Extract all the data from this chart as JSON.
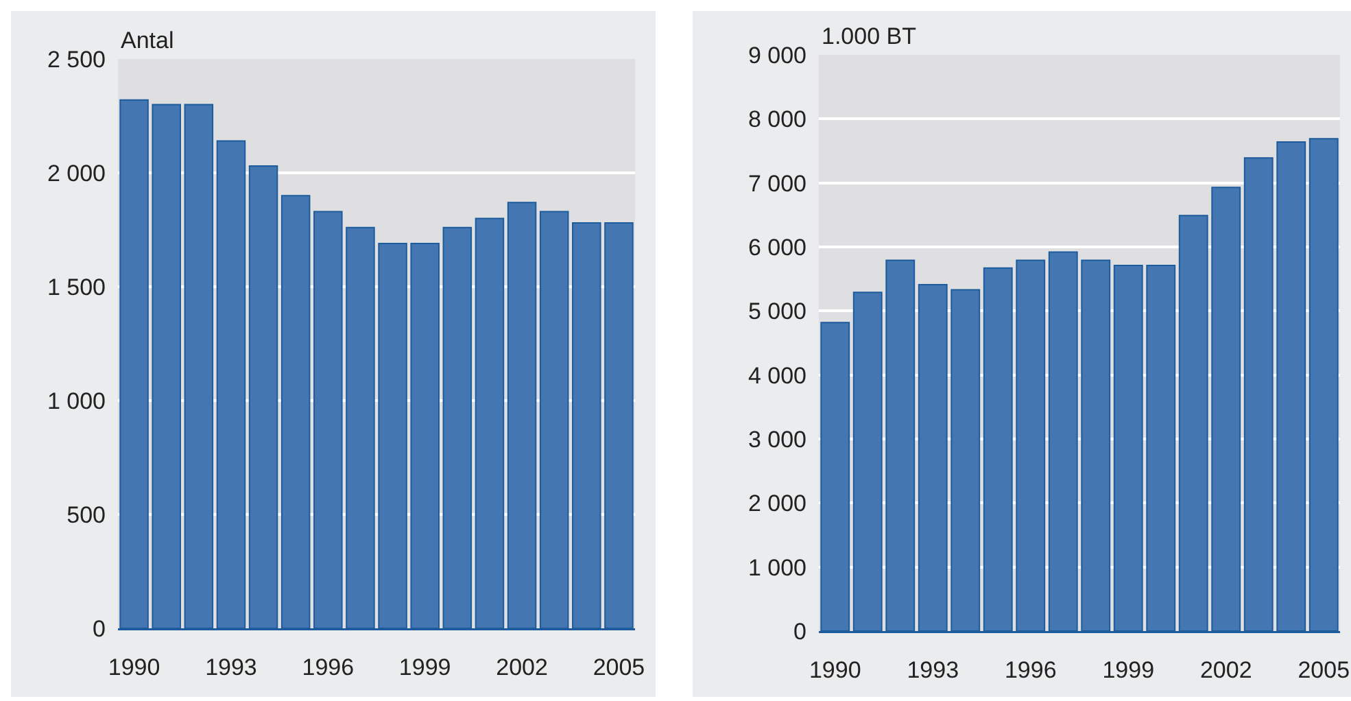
{
  "chart_data": [
    {
      "type": "bar",
      "ylabel": "Antal",
      "categories": [
        "1990",
        null,
        null,
        "1993",
        null,
        null,
        "1996",
        null,
        null,
        "1999",
        null,
        null,
        "2002",
        null,
        null,
        "2005"
      ],
      "values": [
        2320,
        2300,
        2300,
        2140,
        2030,
        1900,
        1830,
        1760,
        1690,
        1690,
        1760,
        1800,
        1870,
        1830,
        1780,
        1780
      ],
      "color": "#4477b2",
      "ylim": [
        0,
        2500
      ],
      "yticks": [
        {
          "value": 0,
          "label": "0"
        },
        {
          "value": 500,
          "label": "500"
        },
        {
          "value": 1000,
          "label": "1 000"
        },
        {
          "value": 1500,
          "label": "1 500"
        },
        {
          "value": 2000,
          "label": "2 000"
        },
        {
          "value": 2500,
          "label": "2 500"
        }
      ],
      "grid": "y"
    },
    {
      "type": "bar",
      "ylabel": "1.000 BT",
      "categories": [
        "1990",
        null,
        null,
        "1993",
        null,
        null,
        "1996",
        null,
        null,
        "1999",
        null,
        null,
        "2002",
        null,
        null,
        "2005"
      ],
      "values": [
        4820,
        5290,
        5790,
        5410,
        5330,
        5670,
        5790,
        5920,
        5790,
        5710,
        5710,
        6490,
        6930,
        7390,
        7640,
        7690
      ],
      "color": "#4477b2",
      "ylim": [
        0,
        9000
      ],
      "yticks": [
        {
          "value": 0,
          "label": "0"
        },
        {
          "value": 1000,
          "label": "1 000"
        },
        {
          "value": 2000,
          "label": "2 000"
        },
        {
          "value": 3000,
          "label": "3 000"
        },
        {
          "value": 4000,
          "label": "4 000"
        },
        {
          "value": 5000,
          "label": "5 000"
        },
        {
          "value": 6000,
          "label": "6 000"
        },
        {
          "value": 7000,
          "label": "7 000"
        },
        {
          "value": 8000,
          "label": "8 000"
        },
        {
          "value": 9000,
          "label": "9 000"
        }
      ],
      "grid": "y"
    }
  ]
}
